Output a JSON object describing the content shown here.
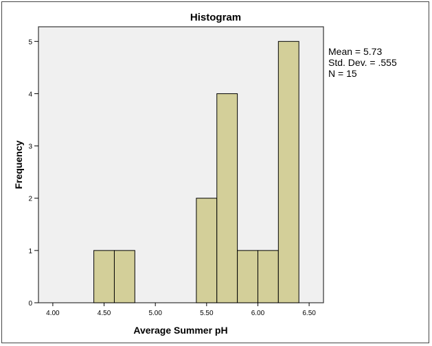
{
  "chart_data": {
    "type": "bar",
    "subtype": "histogram",
    "title": "Histogram",
    "xlabel": "Average Summer pH",
    "ylabel": "Frequency",
    "bins": [
      {
        "from": 4.4,
        "to": 4.6,
        "count": 1
      },
      {
        "from": 4.6,
        "to": 4.8,
        "count": 1
      },
      {
        "from": 5.4,
        "to": 5.6,
        "count": 2
      },
      {
        "from": 5.6,
        "to": 5.8,
        "count": 4
      },
      {
        "from": 5.8,
        "to": 6.0,
        "count": 1
      },
      {
        "from": 6.0,
        "to": 6.2,
        "count": 1
      },
      {
        "from": 6.2,
        "to": 6.4,
        "count": 5
      }
    ],
    "xlim": [
      3.86,
      6.64
    ],
    "ylim": [
      0,
      5.28
    ],
    "xticks": [
      "4.00",
      "4.50",
      "5.00",
      "5.50",
      "6.00",
      "6.50"
    ],
    "yticks": [
      "0",
      "1",
      "2",
      "3",
      "4",
      "5"
    ],
    "grid": false,
    "stats": {
      "mean": "Mean = 5.73",
      "std": "Std. Dev. = .555",
      "n": "N = 15"
    },
    "legend_placement": "right",
    "colors": {
      "bar": "#d3cf99",
      "plot_bg": "#f0f0f0",
      "outline": "#000000"
    }
  }
}
